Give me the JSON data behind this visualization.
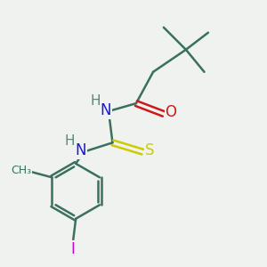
{
  "background_color": "#f0f2f0",
  "bond_color": "#3a7060",
  "N_color": "#1a1acc",
  "O_color": "#cc1a1a",
  "S_color": "#cccc00",
  "I_color": "#cc00cc",
  "H_color": "#5a8878",
  "line_width": 1.8,
  "figsize": [
    3.0,
    3.0
  ],
  "dpi": 100,
  "xlim": [
    0,
    10
  ],
  "ylim": [
    0,
    10
  ]
}
